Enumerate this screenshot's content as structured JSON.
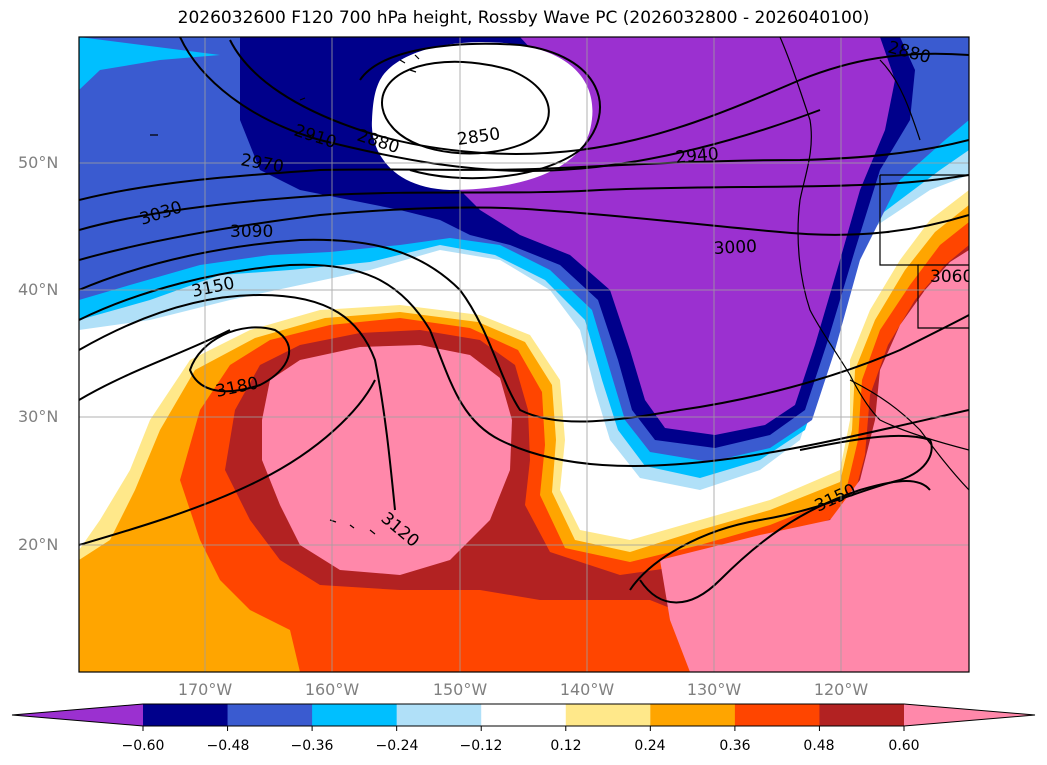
{
  "title": "2026032600 F120 700 hPa height, Rossby Wave PC (2026032800 - 2026040100)",
  "lat_labels": [
    "50°N",
    "40°N",
    "30°N",
    "20°N"
  ],
  "lon_labels": [
    "170°W",
    "160°W",
    "150°W",
    "140°W",
    "130°W",
    "120°W"
  ],
  "contour_labels": [
    "2880",
    "2910",
    "2880",
    "2850",
    "2970",
    "2940",
    "3030",
    "3090",
    "3000",
    "3150",
    "3060",
    "3180",
    "3120",
    "3150"
  ],
  "colorbar": {
    "ticks": [
      "−0.60",
      "−0.48",
      "−0.36",
      "−0.24",
      "−0.12",
      "0.12",
      "0.24",
      "0.36",
      "0.48",
      "0.60"
    ],
    "colors": [
      "#9b30d0",
      "#00008b",
      "#3a5bd0",
      "#00bfff",
      "#b0e0f8",
      "#ffffff",
      "#ffe88a",
      "#ffa500",
      "#ff4500",
      "#b22222",
      "#ff88aa"
    ]
  },
  "palette": {
    "ocean_white": "#ffffff",
    "land_line": "#000000",
    "grid": "#a0a0a0"
  }
}
